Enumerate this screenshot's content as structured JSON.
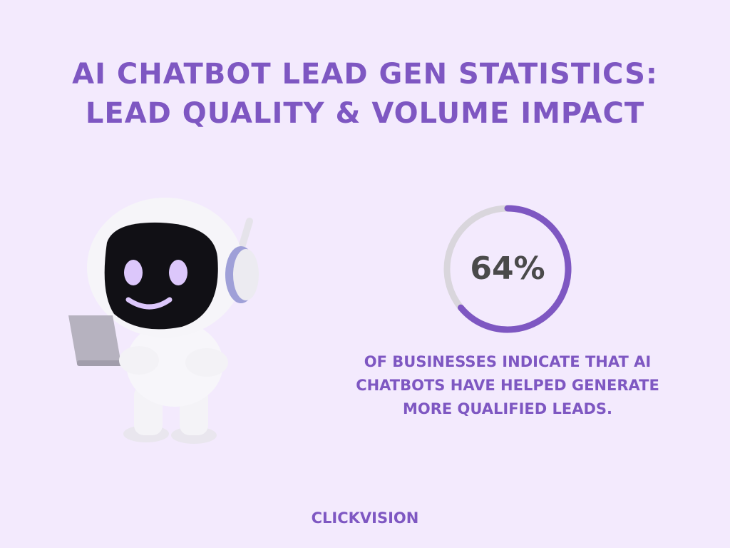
{
  "title": [
    "AI CHATBOT LEAD GEN STATISTICS:",
    "LEAD QUALITY & VOLUME IMPACT"
  ],
  "stat": {
    "value": 64,
    "label": "64%",
    "color": "#7e57c2",
    "track_color": "#d9d6dc"
  },
  "description": [
    "OF BUSINESSES INDICATE THAT AI",
    "CHATBOTS HAVE HELPED GENERATE",
    "MORE QUALIFIED LEADS."
  ],
  "brand": "CLICKVISION"
}
